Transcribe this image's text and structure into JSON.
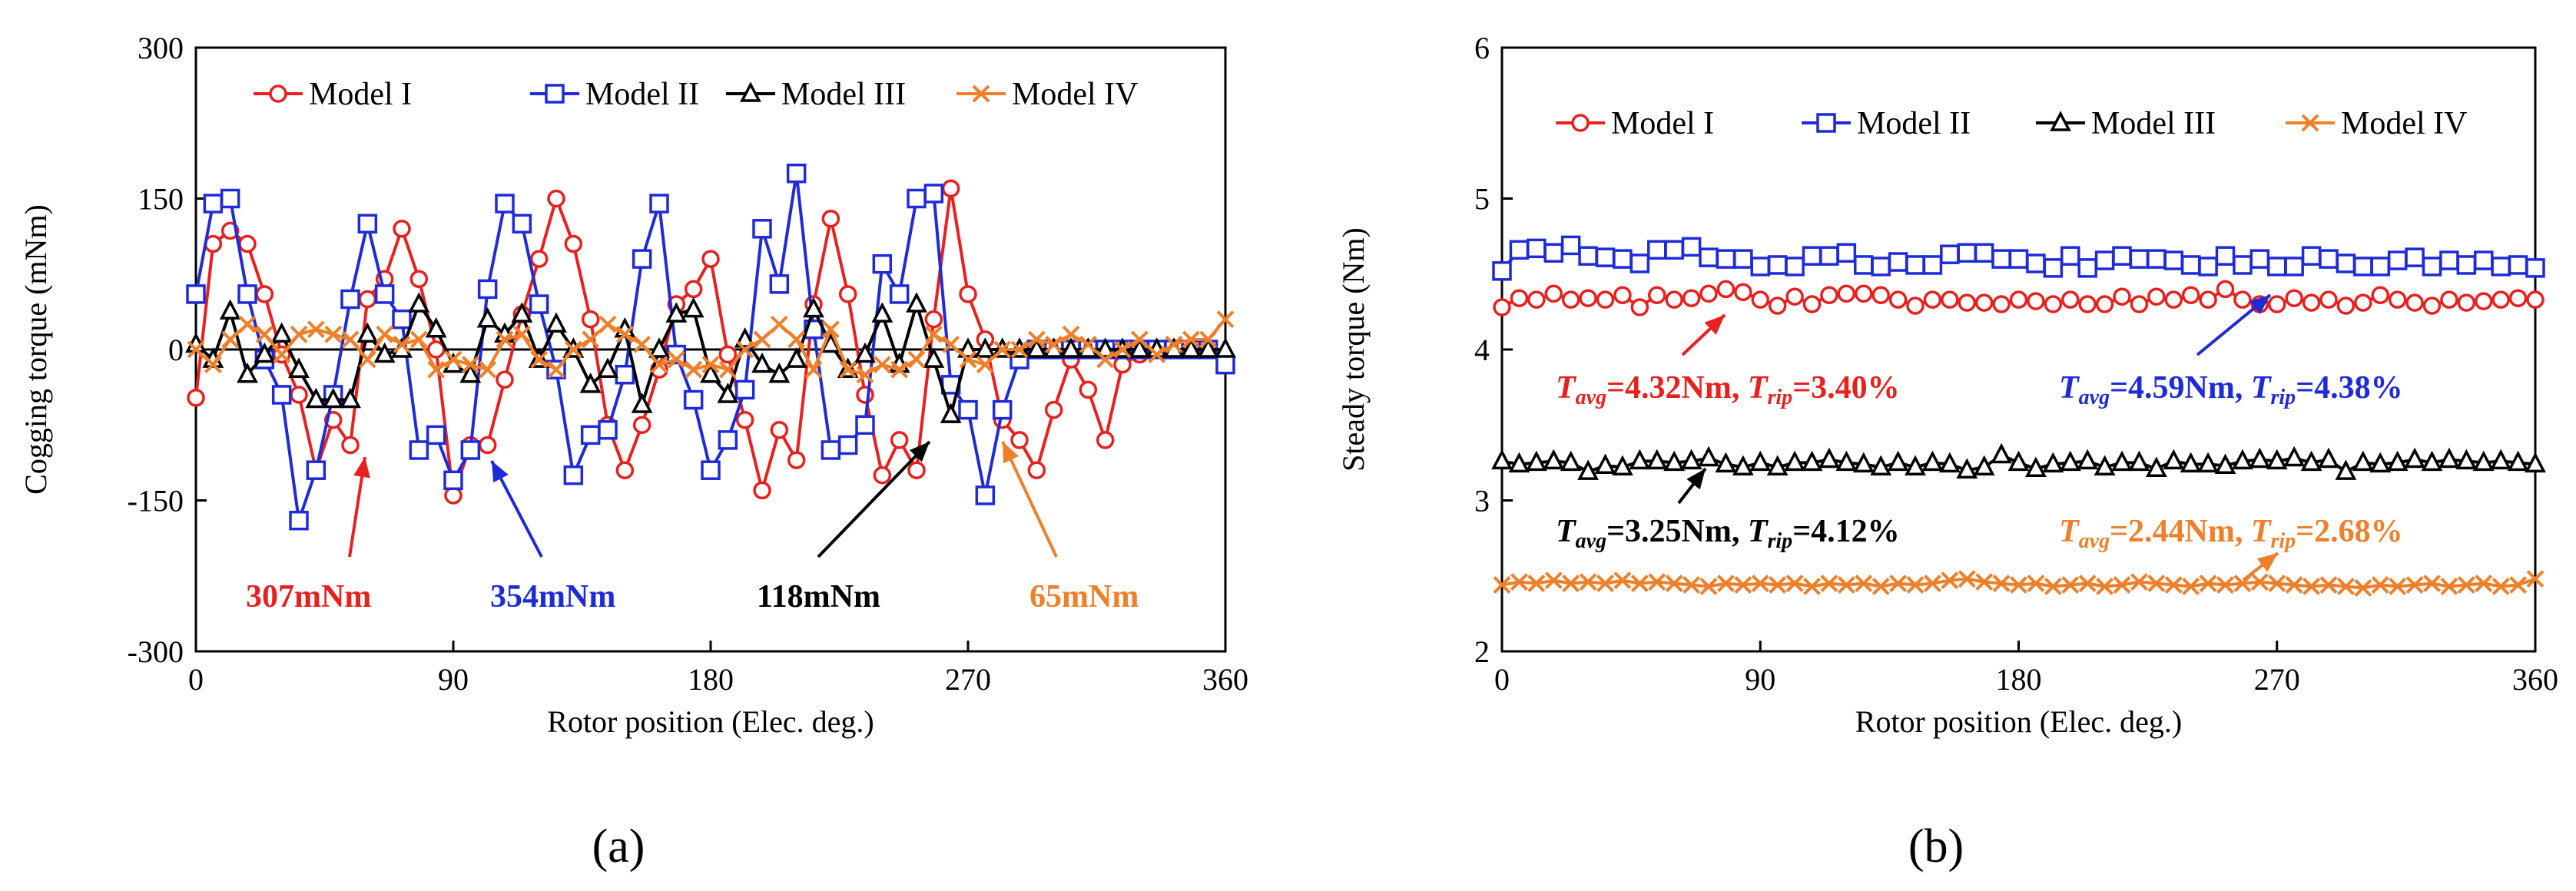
{
  "chart_data": [
    {
      "type": "line",
      "panel_label": "(a)",
      "xlabel": "Rotor position (Elec. deg.)",
      "ylabel": "Cogging torque  (mNm)",
      "xlim": [
        0,
        360
      ],
      "ylim": [
        -300,
        300
      ],
      "xticks": [
        "0",
        "90",
        "180",
        "270",
        "360"
      ],
      "yticks": [
        "-300",
        "-150",
        "0",
        "150",
        "300"
      ],
      "legend_position": "top",
      "x": [
        0,
        6,
        12,
        18,
        24,
        30,
        36,
        42,
        48,
        54,
        60,
        66,
        72,
        78,
        84,
        90,
        96,
        102,
        108,
        114,
        120,
        126,
        132,
        138,
        144,
        150,
        156,
        162,
        168,
        174,
        180,
        186,
        192,
        198,
        204,
        210,
        216,
        222,
        228,
        234,
        240,
        246,
        252,
        258,
        264,
        270,
        276,
        282,
        288,
        294,
        300,
        306,
        312,
        318,
        324,
        330,
        336,
        342,
        348,
        354,
        360
      ],
      "series": [
        {
          "name": "Model I",
          "color": "#e8201e",
          "marker": "circle",
          "values": [
            -48,
            105,
            118,
            105,
            55,
            -5,
            -45,
            -120,
            -70,
            -95,
            50,
            70,
            120,
            70,
            0,
            -145,
            -95,
            -95,
            -30,
            35,
            90,
            150,
            105,
            30,
            -75,
            -120,
            -75,
            -20,
            45,
            60,
            90,
            -5,
            -70,
            -140,
            -80,
            -110,
            45,
            130,
            55,
            -45,
            -125,
            -90,
            -120,
            30,
            160,
            55,
            10,
            -70,
            -90,
            -120,
            -60,
            -10,
            -40,
            -90,
            -15,
            -5,
            0,
            0,
            0,
            0,
            -10
          ]
        },
        {
          "name": "Model II",
          "color": "#1f2bd6",
          "marker": "square",
          "values": [
            55,
            145,
            150,
            55,
            -10,
            -45,
            -170,
            -120,
            -45,
            50,
            125,
            55,
            30,
            -100,
            -85,
            -130,
            -100,
            60,
            145,
            125,
            45,
            -20,
            -125,
            -85,
            -80,
            -25,
            90,
            145,
            -5,
            -50,
            -120,
            -90,
            -40,
            120,
            65,
            175,
            20,
            -100,
            -95,
            -75,
            85,
            55,
            150,
            155,
            -35,
            -60,
            -145,
            -60,
            -10,
            0,
            0,
            0,
            0,
            0,
            0,
            0,
            0,
            0,
            0,
            0,
            -15
          ]
        },
        {
          "name": "Model III",
          "color": "#000000",
          "marker": "triangle",
          "values": [
            5,
            -10,
            38,
            -25,
            -5,
            15,
            -20,
            -50,
            -50,
            -50,
            15,
            -5,
            0,
            45,
            20,
            -15,
            -25,
            30,
            15,
            35,
            -10,
            25,
            0,
            -35,
            -20,
            20,
            -55,
            0,
            35,
            40,
            -25,
            -45,
            10,
            -15,
            -25,
            -10,
            40,
            5,
            -20,
            -5,
            35,
            -15,
            45,
            -10,
            -65,
            0,
            0,
            0,
            0,
            0,
            0,
            0,
            0,
            0,
            0,
            0,
            0,
            0,
            0,
            0,
            0
          ]
        },
        {
          "name": "Model IV",
          "color": "#f07f2a",
          "marker": "cross",
          "values": [
            0,
            -15,
            10,
            25,
            15,
            -5,
            15,
            20,
            15,
            10,
            -10,
            15,
            5,
            10,
            -20,
            -10,
            -15,
            -20,
            10,
            15,
            -10,
            -20,
            0,
            10,
            25,
            15,
            5,
            -15,
            -10,
            -20,
            -15,
            -20,
            0,
            10,
            25,
            10,
            -20,
            20,
            -20,
            -25,
            -15,
            -20,
            -10,
            15,
            5,
            -10,
            -15,
            0,
            0,
            10,
            5,
            15,
            5,
            -10,
            0,
            10,
            -5,
            5,
            10,
            10,
            30
          ]
        }
      ],
      "annotations": [
        {
          "text": "307mNm",
          "color": "#e8201e"
        },
        {
          "text": "354mNm",
          "color": "#1f2bd6"
        },
        {
          "text": "118mNm",
          "color": "#000000"
        },
        {
          "text": "65mNm",
          "color": "#f07f2a"
        }
      ]
    },
    {
      "type": "line",
      "panel_label": "(b)",
      "xlabel": "Rotor position (Elec. deg.)",
      "ylabel": "Steady torque  (Nm)",
      "xlim": [
        0,
        360
      ],
      "ylim": [
        2,
        6
      ],
      "xticks": [
        "0",
        "90",
        "180",
        "270",
        "360"
      ],
      "yticks": [
        "2",
        "3",
        "4",
        "5",
        "6"
      ],
      "legend_position": "top",
      "x": [
        0,
        6,
        12,
        18,
        24,
        30,
        36,
        42,
        48,
        54,
        60,
        66,
        72,
        78,
        84,
        90,
        96,
        102,
        108,
        114,
        120,
        126,
        132,
        138,
        144,
        150,
        156,
        162,
        168,
        174,
        180,
        186,
        192,
        198,
        204,
        210,
        216,
        222,
        228,
        234,
        240,
        246,
        252,
        258,
        264,
        270,
        276,
        282,
        288,
        294,
        300,
        306,
        312,
        318,
        324,
        330,
        336,
        342,
        348,
        354,
        360
      ],
      "series": [
        {
          "name": "Model I",
          "color": "#e8201e",
          "marker": "circle",
          "values": [
            4.28,
            4.34,
            4.33,
            4.37,
            4.33,
            4.34,
            4.33,
            4.36,
            4.28,
            4.36,
            4.33,
            4.34,
            4.37,
            4.4,
            4.38,
            4.33,
            4.29,
            4.35,
            4.3,
            4.36,
            4.37,
            4.37,
            4.36,
            4.33,
            4.29,
            4.33,
            4.33,
            4.31,
            4.31,
            4.3,
            4.33,
            4.32,
            4.3,
            4.33,
            4.3,
            4.3,
            4.35,
            4.3,
            4.35,
            4.33,
            4.36,
            4.33,
            4.4,
            4.33,
            4.3,
            4.3,
            4.34,
            4.31,
            4.33,
            4.29,
            4.31,
            4.36,
            4.33,
            4.31,
            4.29,
            4.33,
            4.31,
            4.32,
            4.33,
            4.34,
            4.33
          ]
        },
        {
          "name": "Model II",
          "color": "#1f2bd6",
          "marker": "square",
          "values": [
            4.52,
            4.66,
            4.67,
            4.64,
            4.69,
            4.62,
            4.61,
            4.6,
            4.57,
            4.66,
            4.66,
            4.68,
            4.61,
            4.6,
            4.6,
            4.55,
            4.56,
            4.55,
            4.62,
            4.62,
            4.64,
            4.56,
            4.55,
            4.58,
            4.56,
            4.56,
            4.63,
            4.64,
            4.64,
            4.6,
            4.6,
            4.57,
            4.54,
            4.62,
            4.54,
            4.59,
            4.62,
            4.6,
            4.6,
            4.59,
            4.56,
            4.55,
            4.62,
            4.56,
            4.6,
            4.55,
            4.55,
            4.62,
            4.6,
            4.57,
            4.55,
            4.55,
            4.59,
            4.61,
            4.55,
            4.59,
            4.56,
            4.59,
            4.55,
            4.56,
            4.54
          ]
        },
        {
          "name": "Model III",
          "color": "#000000",
          "marker": "triangle",
          "values": [
            3.26,
            3.24,
            3.25,
            3.26,
            3.25,
            3.19,
            3.23,
            3.22,
            3.26,
            3.26,
            3.25,
            3.26,
            3.28,
            3.24,
            3.22,
            3.25,
            3.22,
            3.25,
            3.25,
            3.27,
            3.25,
            3.24,
            3.22,
            3.25,
            3.22,
            3.25,
            3.24,
            3.2,
            3.22,
            3.3,
            3.25,
            3.21,
            3.24,
            3.25,
            3.26,
            3.22,
            3.25,
            3.25,
            3.21,
            3.26,
            3.24,
            3.24,
            3.23,
            3.26,
            3.27,
            3.26,
            3.28,
            3.25,
            3.27,
            3.19,
            3.25,
            3.24,
            3.25,
            3.27,
            3.25,
            3.27,
            3.26,
            3.25,
            3.26,
            3.25,
            3.24
          ]
        },
        {
          "name": "Model IV",
          "color": "#f07f2a",
          "marker": "cross",
          "values": [
            2.44,
            2.46,
            2.45,
            2.47,
            2.45,
            2.46,
            2.45,
            2.47,
            2.45,
            2.46,
            2.45,
            2.44,
            2.43,
            2.45,
            2.44,
            2.45,
            2.44,
            2.45,
            2.43,
            2.45,
            2.44,
            2.45,
            2.43,
            2.45,
            2.44,
            2.45,
            2.47,
            2.48,
            2.46,
            2.45,
            2.44,
            2.45,
            2.43,
            2.44,
            2.45,
            2.43,
            2.44,
            2.46,
            2.45,
            2.44,
            2.43,
            2.45,
            2.44,
            2.45,
            2.46,
            2.45,
            2.44,
            2.43,
            2.44,
            2.43,
            2.42,
            2.44,
            2.43,
            2.44,
            2.45,
            2.43,
            2.44,
            2.45,
            2.43,
            2.44,
            2.48
          ]
        }
      ],
      "annotations": [
        {
          "avg": "=4.32Nm, ",
          "rip": "=3.40%",
          "color": "#e8201e"
        },
        {
          "avg": "=4.59Nm, ",
          "rip": "=4.38%",
          "color": "#1f2bd6"
        },
        {
          "avg": "=3.25Nm, ",
          "rip": "=4.12%",
          "color": "#000000"
        },
        {
          "avg": "=2.44Nm, ",
          "rip": "=2.68%",
          "color": "#f07f2a"
        }
      ]
    }
  ]
}
